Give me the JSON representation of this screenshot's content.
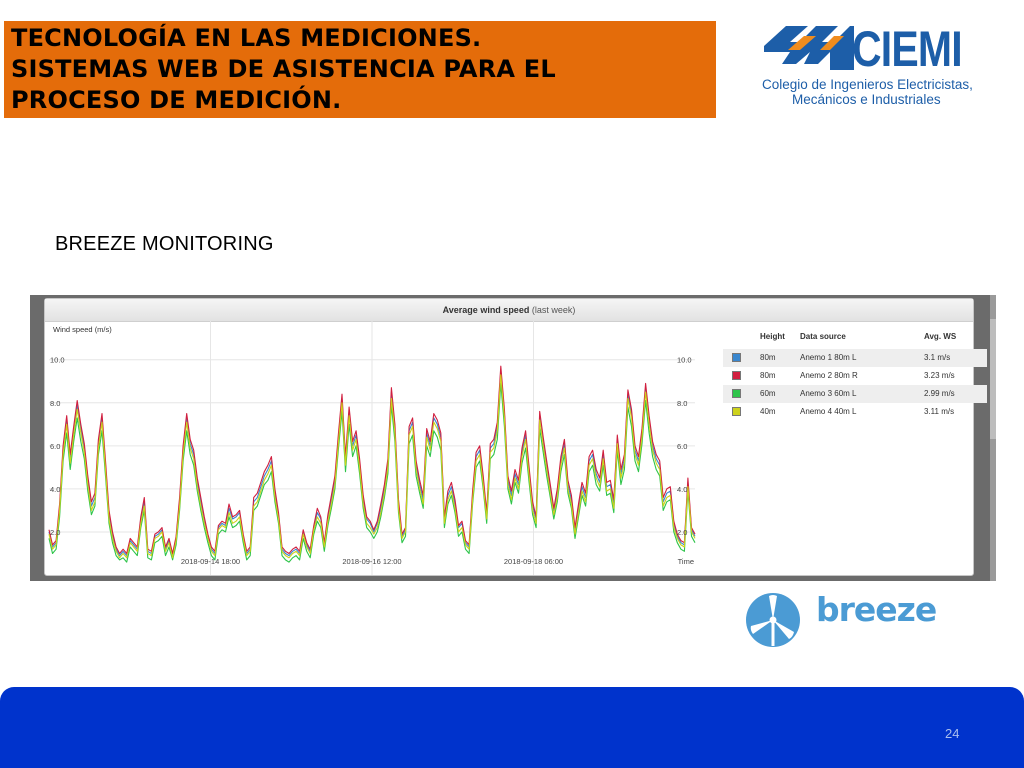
{
  "header": {
    "title_lines": [
      "TECNOLOGÍA EN LAS MEDICIONES.",
      "SISTEMAS WEB DE ASISTENCIA PARA EL",
      "PROCESO DE MEDICIÓN."
    ],
    "accent_color": "#e46c0a"
  },
  "logo": {
    "name": "CIEMI",
    "subtitle_line1": "Colegio de Ingenieros Electricistas,",
    "subtitle_line2": "Mecánicos e Industriales",
    "color": "#1d5ea8"
  },
  "section_title": "BREEZE MONITORING",
  "screenshot": {
    "panel_title": "Average wind speed",
    "panel_title_suffix": "(last week)",
    "y_axis_label": "Wind speed (m/s)",
    "y_ticks": [
      "10.0",
      "8.0",
      "6.0",
      "4.0",
      "2.0"
    ],
    "x_ticks": [
      "2018-09-14 18:00",
      "2018-09-16 12:00",
      "2018-09-18 06:00"
    ],
    "x_axis_end_label": "Time",
    "legend": {
      "headers": {
        "height": "Height",
        "source": "Data source",
        "avg": "Avg. WS"
      },
      "rows": [
        {
          "height": "80m",
          "source": "Anemo 1 80m L",
          "avg": "3.1 m/s",
          "color": "#3a87cf"
        },
        {
          "height": "80m",
          "source": "Anemo 2 80m R",
          "avg": "3.23 m/s",
          "color": "#d11f3f"
        },
        {
          "height": "60m",
          "source": "Anemo 3 60m L",
          "avg": "2.99 m/s",
          "color": "#2ec44a"
        },
        {
          "height": "40m",
          "source": "Anemo 4 40m L",
          "avg": "3.11 m/s",
          "color": "#cdd21c"
        }
      ]
    }
  },
  "chart_data": {
    "type": "line",
    "title": "Average wind speed (last week)",
    "ylabel": "Wind speed (m/s)",
    "xlabel": "Time",
    "ylim": [
      0,
      11.8
    ],
    "x_ticks": [
      "2018-09-14 18:00",
      "2018-09-16 12:00",
      "2018-09-18 06:00"
    ],
    "grid": true,
    "legend_position": "right",
    "series": [
      {
        "name": "Anemo 1 80m L",
        "color": "#3a87cf",
        "values": [
          2.0,
          1.3,
          1.5,
          3.1,
          5.8,
          7.2,
          5.4,
          6.7,
          7.9,
          6.8,
          5.9,
          4.4,
          3.2,
          3.6,
          6.1,
          7.3,
          5.1,
          2.8,
          1.9,
          1.2,
          0.9,
          1.1,
          0.9,
          1.6,
          1.4,
          1.2,
          2.6,
          3.4,
          1.1,
          1.0,
          1.8,
          1.9,
          2.1,
          1.2,
          1.6,
          0.9,
          1.7,
          3.4,
          5.8,
          7.3,
          6.1,
          5.6,
          4.3,
          3.4,
          2.6,
          1.8,
          1.2,
          1.0,
          2.2,
          2.4,
          2.3,
          3.1,
          2.6,
          2.7,
          2.9,
          1.8,
          1.0,
          1.2,
          3.4,
          3.6,
          4.1,
          4.6,
          4.9,
          5.3,
          3.8,
          2.8,
          1.2,
          1.0,
          0.9,
          1.1,
          1.2,
          1.0,
          2.0,
          1.4,
          1.1,
          2.2,
          2.9,
          2.6,
          1.4,
          2.7,
          3.5,
          4.4,
          6.4,
          8.2,
          5.3,
          7.6,
          6.0,
          6.5,
          5.2,
          3.5,
          2.6,
          2.4,
          2.0,
          2.4,
          3.1,
          4.0,
          5.2,
          8.5,
          6.8,
          3.3,
          1.8,
          2.1,
          6.7,
          7.1,
          5.1,
          4.2,
          3.5,
          6.6,
          6.0,
          7.3,
          7.0,
          6.4,
          2.6,
          3.7,
          4.1,
          3.3,
          2.2,
          2.4,
          1.5,
          1.3,
          3.7,
          5.5,
          5.8,
          4.4,
          2.8,
          5.9,
          6.1,
          6.9,
          9.5,
          7.5,
          4.4,
          3.7,
          4.7,
          4.2,
          5.7,
          6.5,
          4.8,
          3.2,
          2.6,
          7.4,
          6.2,
          5.1,
          4.0,
          3.0,
          3.8,
          5.3,
          6.1,
          4.2,
          3.5,
          2.1,
          3.1,
          4.1,
          3.6,
          5.3,
          5.6,
          4.7,
          4.3,
          5.6,
          4.1,
          4.2,
          3.3,
          6.3,
          4.7,
          5.4,
          8.4,
          7.5,
          5.8,
          5.3,
          6.6,
          8.7,
          7.2,
          6.0,
          5.4,
          5.1,
          3.4,
          3.8,
          3.9,
          2.4,
          1.8,
          1.5,
          1.4,
          4.3,
          2.1,
          1.8
        ]
      },
      {
        "name": "Anemo 2 80m R",
        "color": "#d11f3f",
        "values": [
          2.1,
          1.4,
          1.6,
          3.3,
          6.0,
          7.4,
          5.6,
          6.9,
          8.1,
          7.0,
          6.1,
          4.6,
          3.4,
          3.8,
          6.3,
          7.5,
          5.3,
          3.0,
          2.0,
          1.3,
          1.0,
          1.2,
          1.0,
          1.7,
          1.5,
          1.3,
          2.7,
          3.6,
          1.2,
          1.1,
          1.9,
          2.0,
          2.2,
          1.3,
          1.7,
          1.0,
          1.8,
          3.6,
          6.0,
          7.5,
          6.3,
          5.8,
          4.5,
          3.6,
          2.7,
          1.9,
          1.3,
          1.1,
          2.3,
          2.5,
          2.4,
          3.3,
          2.7,
          2.8,
          3.0,
          1.9,
          1.1,
          1.3,
          3.6,
          3.8,
          4.3,
          4.8,
          5.1,
          5.5,
          4.0,
          2.9,
          1.3,
          1.1,
          1.0,
          1.2,
          1.3,
          1.1,
          2.1,
          1.5,
          1.2,
          2.3,
          3.1,
          2.7,
          1.5,
          2.8,
          3.7,
          4.6,
          6.6,
          8.4,
          5.5,
          7.8,
          6.2,
          6.7,
          5.4,
          3.7,
          2.7,
          2.5,
          2.1,
          2.5,
          3.3,
          4.2,
          5.4,
          8.7,
          7.0,
          3.5,
          1.9,
          2.2,
          6.9,
          7.3,
          5.3,
          4.4,
          3.7,
          6.8,
          6.2,
          7.5,
          7.2,
          6.6,
          2.7,
          3.9,
          4.3,
          3.5,
          2.3,
          2.5,
          1.6,
          1.4,
          3.9,
          5.7,
          6.0,
          4.6,
          2.9,
          6.1,
          6.3,
          7.1,
          9.7,
          7.7,
          4.6,
          3.9,
          4.9,
          4.4,
          5.9,
          6.7,
          5.0,
          3.4,
          2.7,
          7.6,
          6.4,
          5.3,
          4.2,
          3.1,
          4.0,
          5.5,
          6.3,
          4.4,
          3.7,
          2.2,
          3.3,
          4.3,
          3.8,
          5.5,
          5.8,
          4.9,
          4.5,
          5.8,
          4.3,
          4.4,
          3.5,
          6.5,
          4.9,
          5.6,
          8.6,
          7.7,
          6.0,
          5.5,
          6.8,
          8.9,
          7.4,
          6.2,
          5.6,
          5.3,
          3.6,
          4.0,
          4.1,
          2.5,
          1.9,
          1.6,
          1.5,
          4.5,
          2.2,
          1.9
        ]
      },
      {
        "name": "Anemo 3 60m L",
        "color": "#2ec44a",
        "values": [
          1.7,
          1.0,
          1.2,
          2.7,
          5.3,
          6.6,
          4.9,
          6.2,
          7.3,
          6.2,
          5.4,
          3.9,
          2.8,
          3.2,
          5.6,
          6.7,
          4.6,
          2.4,
          1.5,
          0.9,
          0.7,
          0.8,
          0.6,
          1.3,
          1.1,
          0.9,
          2.2,
          3.0,
          0.8,
          0.7,
          1.5,
          1.6,
          1.8,
          0.9,
          1.3,
          0.7,
          1.4,
          3.0,
          5.3,
          6.7,
          5.6,
          5.1,
          3.9,
          3.0,
          2.2,
          1.5,
          0.9,
          0.7,
          1.9,
          2.1,
          2.0,
          2.7,
          2.2,
          2.3,
          2.5,
          1.5,
          0.7,
          0.9,
          3.0,
          3.2,
          3.7,
          4.2,
          4.4,
          4.8,
          3.4,
          2.4,
          0.9,
          0.7,
          0.6,
          0.8,
          0.9,
          0.7,
          1.7,
          1.1,
          0.8,
          1.9,
          2.5,
          2.2,
          1.1,
          2.3,
          3.1,
          4.0,
          5.9,
          7.6,
          4.8,
          7.0,
          5.5,
          6.0,
          4.7,
          3.1,
          2.2,
          2.0,
          1.7,
          2.0,
          2.7,
          3.6,
          4.7,
          7.9,
          6.2,
          2.9,
          1.5,
          1.8,
          6.1,
          6.5,
          4.6,
          3.8,
          3.1,
          6.0,
          5.5,
          6.7,
          6.4,
          5.8,
          2.2,
          3.3,
          3.7,
          2.9,
          1.8,
          2.0,
          1.2,
          1.0,
          3.3,
          5.0,
          5.3,
          4.0,
          2.4,
          5.4,
          5.6,
          6.3,
          8.9,
          6.9,
          4.0,
          3.3,
          4.3,
          3.8,
          5.2,
          5.9,
          4.3,
          2.8,
          2.2,
          6.8,
          5.7,
          4.6,
          3.6,
          2.6,
          3.4,
          4.8,
          5.6,
          3.8,
          3.1,
          1.7,
          2.7,
          3.7,
          3.2,
          4.8,
          5.1,
          4.2,
          3.9,
          5.1,
          3.7,
          3.8,
          2.9,
          5.8,
          4.2,
          4.9,
          7.8,
          6.9,
          5.3,
          4.8,
          6.1,
          8.1,
          6.6,
          5.5,
          4.9,
          4.6,
          3.0,
          3.4,
          3.5,
          2.0,
          1.5,
          1.2,
          1.1,
          3.9,
          1.8,
          1.5
        ]
      },
      {
        "name": "Anemo 4 40m L",
        "color": "#cdd21c",
        "values": [
          1.9,
          1.2,
          1.4,
          3.0,
          5.6,
          7.0,
          5.2,
          6.5,
          7.7,
          6.6,
          5.7,
          4.2,
          3.0,
          3.4,
          5.9,
          7.1,
          4.9,
          2.6,
          1.7,
          1.1,
          0.8,
          1.0,
          0.8,
          1.5,
          1.3,
          1.1,
          2.4,
          3.2,
          1.0,
          0.9,
          1.7,
          1.8,
          2.0,
          1.1,
          1.5,
          0.8,
          1.6,
          3.2,
          5.6,
          7.1,
          5.9,
          5.4,
          4.1,
          3.2,
          2.4,
          1.7,
          1.1,
          0.9,
          2.1,
          2.3,
          2.2,
          2.9,
          2.4,
          2.5,
          2.7,
          1.7,
          0.9,
          1.1,
          3.2,
          3.4,
          3.9,
          4.4,
          4.7,
          5.1,
          3.6,
          2.6,
          1.1,
          0.9,
          0.8,
          1.0,
          1.1,
          0.9,
          1.9,
          1.3,
          1.0,
          2.1,
          2.7,
          2.4,
          1.3,
          2.5,
          3.3,
          4.2,
          6.2,
          8.0,
          5.1,
          7.4,
          5.8,
          6.3,
          5.0,
          3.3,
          2.4,
          2.2,
          1.9,
          2.2,
          2.9,
          3.8,
          5.0,
          8.2,
          6.6,
          3.1,
          1.7,
          2.0,
          6.5,
          6.9,
          4.9,
          4.0,
          3.3,
          6.4,
          5.8,
          7.1,
          6.8,
          6.2,
          2.4,
          3.5,
          3.9,
          3.1,
          2.0,
          2.2,
          1.4,
          1.2,
          3.5,
          5.3,
          5.6,
          4.2,
          2.6,
          5.7,
          5.9,
          6.7,
          9.3,
          7.3,
          4.2,
          3.5,
          4.5,
          4.0,
          5.5,
          6.3,
          4.6,
          3.0,
          2.4,
          7.2,
          6.0,
          4.9,
          3.8,
          2.8,
          3.6,
          5.1,
          5.9,
          4.0,
          3.3,
          1.9,
          2.9,
          3.9,
          3.4,
          5.1,
          5.4,
          4.5,
          4.1,
          5.4,
          3.9,
          4.0,
          3.1,
          6.1,
          4.5,
          5.2,
          8.2,
          7.3,
          5.6,
          5.1,
          6.4,
          8.5,
          7.0,
          5.8,
          5.2,
          4.9,
          3.2,
          3.6,
          3.7,
          2.2,
          1.7,
          1.4,
          1.3,
          4.1,
          2.0,
          1.7
        ]
      }
    ]
  }
}
